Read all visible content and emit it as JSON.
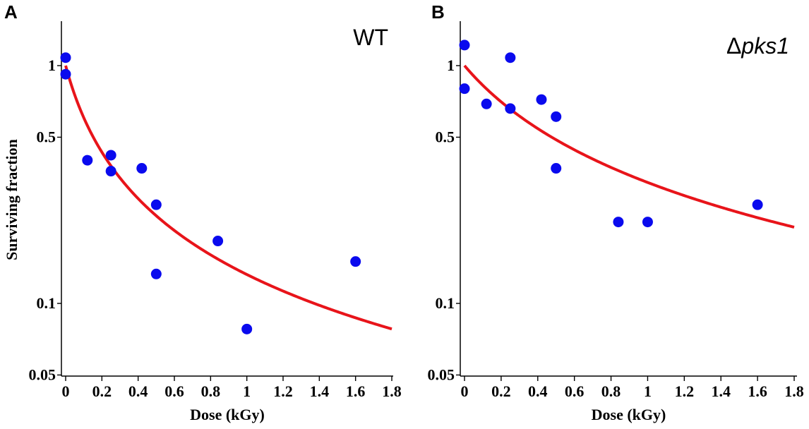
{
  "colors": {
    "points": "#0a0aee",
    "curve": "#e8141a",
    "axis": "#000000"
  },
  "chart_data": [
    {
      "type": "scatter",
      "panel_letter": "A",
      "title": "WT",
      "title_parts": [
        {
          "text": "WT",
          "italic": false
        }
      ],
      "xlabel": "Dose (kGy)",
      "ylabel": "Surviving fraction",
      "xlim": [
        0,
        1.8
      ],
      "ylim": [
        0.05,
        1.4
      ],
      "yscale": "log",
      "xticks": [
        0,
        0.2,
        0.4,
        0.6,
        0.8,
        1,
        1.2,
        1.4,
        1.6,
        1.8
      ],
      "xtick_labels": [
        "0",
        "0.2",
        "0.4",
        "0.6",
        "0.8",
        "1",
        "1.2",
        "1.4",
        "1.6",
        "1.8"
      ],
      "yticks": [
        0.05,
        0.1,
        0.5,
        1
      ],
      "ytick_labels": [
        "0.05",
        "0.1",
        "0.5",
        "1"
      ],
      "ylabel_visible": true,
      "points": [
        {
          "x": 0.0,
          "y": 1.08
        },
        {
          "x": 0.0,
          "y": 0.92
        },
        {
          "x": 0.12,
          "y": 0.4
        },
        {
          "x": 0.25,
          "y": 0.42
        },
        {
          "x": 0.25,
          "y": 0.36
        },
        {
          "x": 0.42,
          "y": 0.37
        },
        {
          "x": 0.5,
          "y": 0.26
        },
        {
          "x": 0.5,
          "y": 0.133
        },
        {
          "x": 0.84,
          "y": 0.183
        },
        {
          "x": 1.0,
          "y": 0.078
        },
        {
          "x": 1.6,
          "y": 0.15
        }
      ],
      "fit": {
        "model": "1/(1+k*x)",
        "k": 6.56,
        "x_range": [
          0,
          1.8
        ]
      }
    },
    {
      "type": "scatter",
      "panel_letter": "B",
      "title": "Δpks1",
      "title_parts": [
        {
          "text": "Δ",
          "italic": false
        },
        {
          "text": "pks1",
          "italic": true
        }
      ],
      "xlabel": "Dose (kGy)",
      "ylabel": "",
      "xlim": [
        0,
        1.8
      ],
      "ylim": [
        0.05,
        1.4
      ],
      "yscale": "log",
      "xticks": [
        0,
        0.2,
        0.4,
        0.6,
        0.8,
        1,
        1.2,
        1.4,
        1.6,
        1.8
      ],
      "xtick_labels": [
        "0",
        "0.2",
        "0.4",
        "0.6",
        "0.8",
        "1",
        "1.2",
        "1.4",
        "1.6",
        "1.8"
      ],
      "yticks": [
        0.05,
        0.1,
        0.5,
        1
      ],
      "ytick_labels": [
        "0.05",
        "0.1",
        "0.5",
        "1"
      ],
      "ylabel_visible": false,
      "points": [
        {
          "x": 0.0,
          "y": 1.22
        },
        {
          "x": 0.0,
          "y": 0.8
        },
        {
          "x": 0.12,
          "y": 0.69
        },
        {
          "x": 0.25,
          "y": 1.08
        },
        {
          "x": 0.25,
          "y": 0.66
        },
        {
          "x": 0.42,
          "y": 0.72
        },
        {
          "x": 0.5,
          "y": 0.61
        },
        {
          "x": 0.5,
          "y": 0.37
        },
        {
          "x": 0.84,
          "y": 0.22
        },
        {
          "x": 1.0,
          "y": 0.22
        },
        {
          "x": 1.6,
          "y": 0.26
        }
      ],
      "fit": {
        "model": "1/(1+k*x)",
        "k": 2.1,
        "x_range": [
          0,
          1.8
        ]
      }
    }
  ]
}
